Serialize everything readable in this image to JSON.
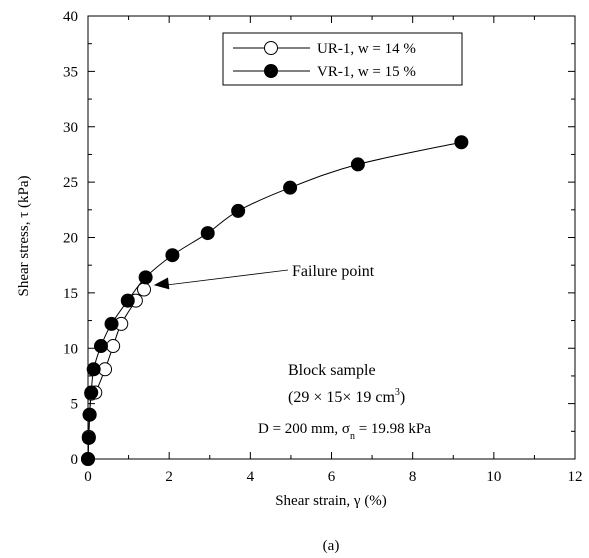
{
  "chart_data": {
    "type": "scatter",
    "xlabel_parts": [
      "Shear strain, ",
      "γ",
      " (%)"
    ],
    "ylabel_parts": [
      "Shear stress, ",
      "τ",
      " (kPa)"
    ],
    "xlim": [
      0,
      12
    ],
    "ylim": [
      0,
      40
    ],
    "x_ticks": [
      "0",
      "2",
      "4",
      "6",
      "8",
      "10",
      "12"
    ],
    "y_ticks": [
      "0",
      "5",
      "10",
      "15",
      "20",
      "25",
      "30",
      "35",
      "40"
    ],
    "grid": false,
    "legend_position": "top-right",
    "series": [
      {
        "name": "UR-1, w = 14 %",
        "marker": "open-circle",
        "x": [
          0,
          0.02,
          0.04,
          0.08,
          0.18,
          0.42,
          0.62,
          0.82,
          1.18,
          1.38
        ],
        "y": [
          0,
          2.0,
          4.0,
          5.9,
          6.0,
          8.1,
          10.2,
          12.2,
          14.3,
          15.3
        ]
      },
      {
        "name": "VR-1, w = 15 %",
        "marker": "filled-circle",
        "x": [
          0,
          0.02,
          0.04,
          0.08,
          0.14,
          0.32,
          0.58,
          0.98,
          1.42,
          2.08,
          2.95,
          3.7,
          4.98,
          6.65,
          9.2
        ],
        "y": [
          0,
          1.9,
          4.0,
          6.0,
          8.1,
          10.2,
          12.2,
          14.3,
          16.4,
          18.4,
          20.4,
          22.4,
          24.5,
          26.6,
          28.6
        ]
      }
    ],
    "annotations": {
      "failure": {
        "text": "Failure point",
        "point_x": 1.62,
        "point_y": 15.7
      },
      "block_line1": "Block sample",
      "block_line2_parts": [
        "(29 × 15× 19 cm",
        "3",
        ")"
      ],
      "params_parts": [
        "D = 200 mm, σ",
        "n",
        " = 19.98 kPa"
      ]
    },
    "caption": "(a)"
  }
}
